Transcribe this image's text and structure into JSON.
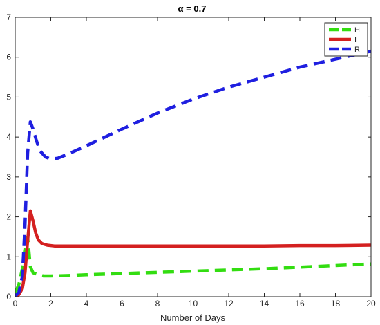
{
  "chart_data": {
    "type": "line",
    "title": "α = 0.7",
    "xlabel": "Number of Days",
    "ylabel": "",
    "xlim": [
      0,
      20
    ],
    "ylim": [
      0,
      7
    ],
    "xticks": [
      0,
      2,
      4,
      6,
      8,
      10,
      12,
      14,
      16,
      18,
      20
    ],
    "yticks": [
      0,
      1,
      2,
      3,
      4,
      5,
      6,
      7
    ],
    "grid": false,
    "legend_position": "top-right",
    "series": [
      {
        "name": "H",
        "color": "#33dd11",
        "style": "dashed",
        "x": [
          0,
          0.2,
          0.4,
          0.55,
          0.7,
          0.85,
          1.0,
          1.3,
          1.6,
          2,
          3,
          4,
          6,
          8,
          10,
          12,
          14,
          16,
          18,
          20
        ],
        "y": [
          0.1,
          0.3,
          0.7,
          1.1,
          1.5,
          0.75,
          0.6,
          0.55,
          0.52,
          0.52,
          0.53,
          0.55,
          0.58,
          0.61,
          0.64,
          0.67,
          0.7,
          0.74,
          0.78,
          0.82
        ]
      },
      {
        "name": "I",
        "color": "#d42020",
        "style": "solid",
        "x": [
          0,
          0.2,
          0.4,
          0.55,
          0.7,
          0.85,
          1.0,
          1.15,
          1.3,
          1.5,
          1.8,
          2.2,
          3,
          4,
          6,
          8,
          10,
          12,
          14,
          16,
          18,
          20
        ],
        "y": [
          0.02,
          0.05,
          0.2,
          0.6,
          1.4,
          2.15,
          1.9,
          1.6,
          1.42,
          1.33,
          1.29,
          1.27,
          1.27,
          1.27,
          1.27,
          1.27,
          1.27,
          1.27,
          1.27,
          1.28,
          1.28,
          1.29
        ]
      },
      {
        "name": "R",
        "color": "#1f1fe0",
        "style": "dashed",
        "x": [
          0,
          0.2,
          0.4,
          0.55,
          0.7,
          0.85,
          1.0,
          1.2,
          1.4,
          1.7,
          2.0,
          2.4,
          3,
          4,
          6,
          8,
          10,
          12,
          14,
          16,
          18,
          20
        ],
        "y": [
          0.02,
          0.1,
          0.5,
          1.8,
          3.6,
          4.38,
          4.2,
          3.9,
          3.65,
          3.5,
          3.45,
          3.47,
          3.58,
          3.78,
          4.2,
          4.6,
          4.95,
          5.25,
          5.5,
          5.75,
          5.95,
          6.15
        ]
      }
    ]
  }
}
